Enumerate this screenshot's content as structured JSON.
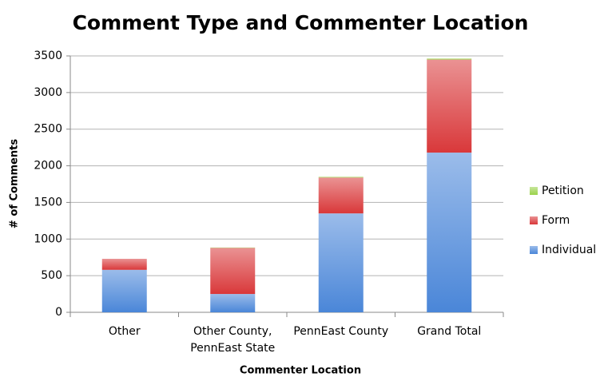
{
  "chart_data": {
    "type": "stacked_bar",
    "title": "Comment Type and Commenter Location",
    "x_label": "Commenter Location",
    "y_label": "# of Comments",
    "categories": [
      [
        "Other"
      ],
      [
        "Other County,",
        "PennEast State"
      ],
      [
        "PennEast County"
      ],
      [
        "Grand Total"
      ]
    ],
    "series": [
      {
        "name": "Individual",
        "color": "#4a86d8",
        "values": [
          580,
          250,
          1350,
          2180
        ]
      },
      {
        "name": "Form",
        "color": "#d9383a",
        "values": [
          150,
          630,
          490,
          1270
        ]
      },
      {
        "name": "Petition",
        "color": "#9ad24a",
        "values": [
          0,
          5,
          10,
          15
        ]
      }
    ],
    "ylim": [
      0,
      3500
    ],
    "yticks": [
      0,
      500,
      1000,
      1500,
      2000,
      2500,
      3000,
      3500
    ],
    "grid": true,
    "legend": "right"
  }
}
